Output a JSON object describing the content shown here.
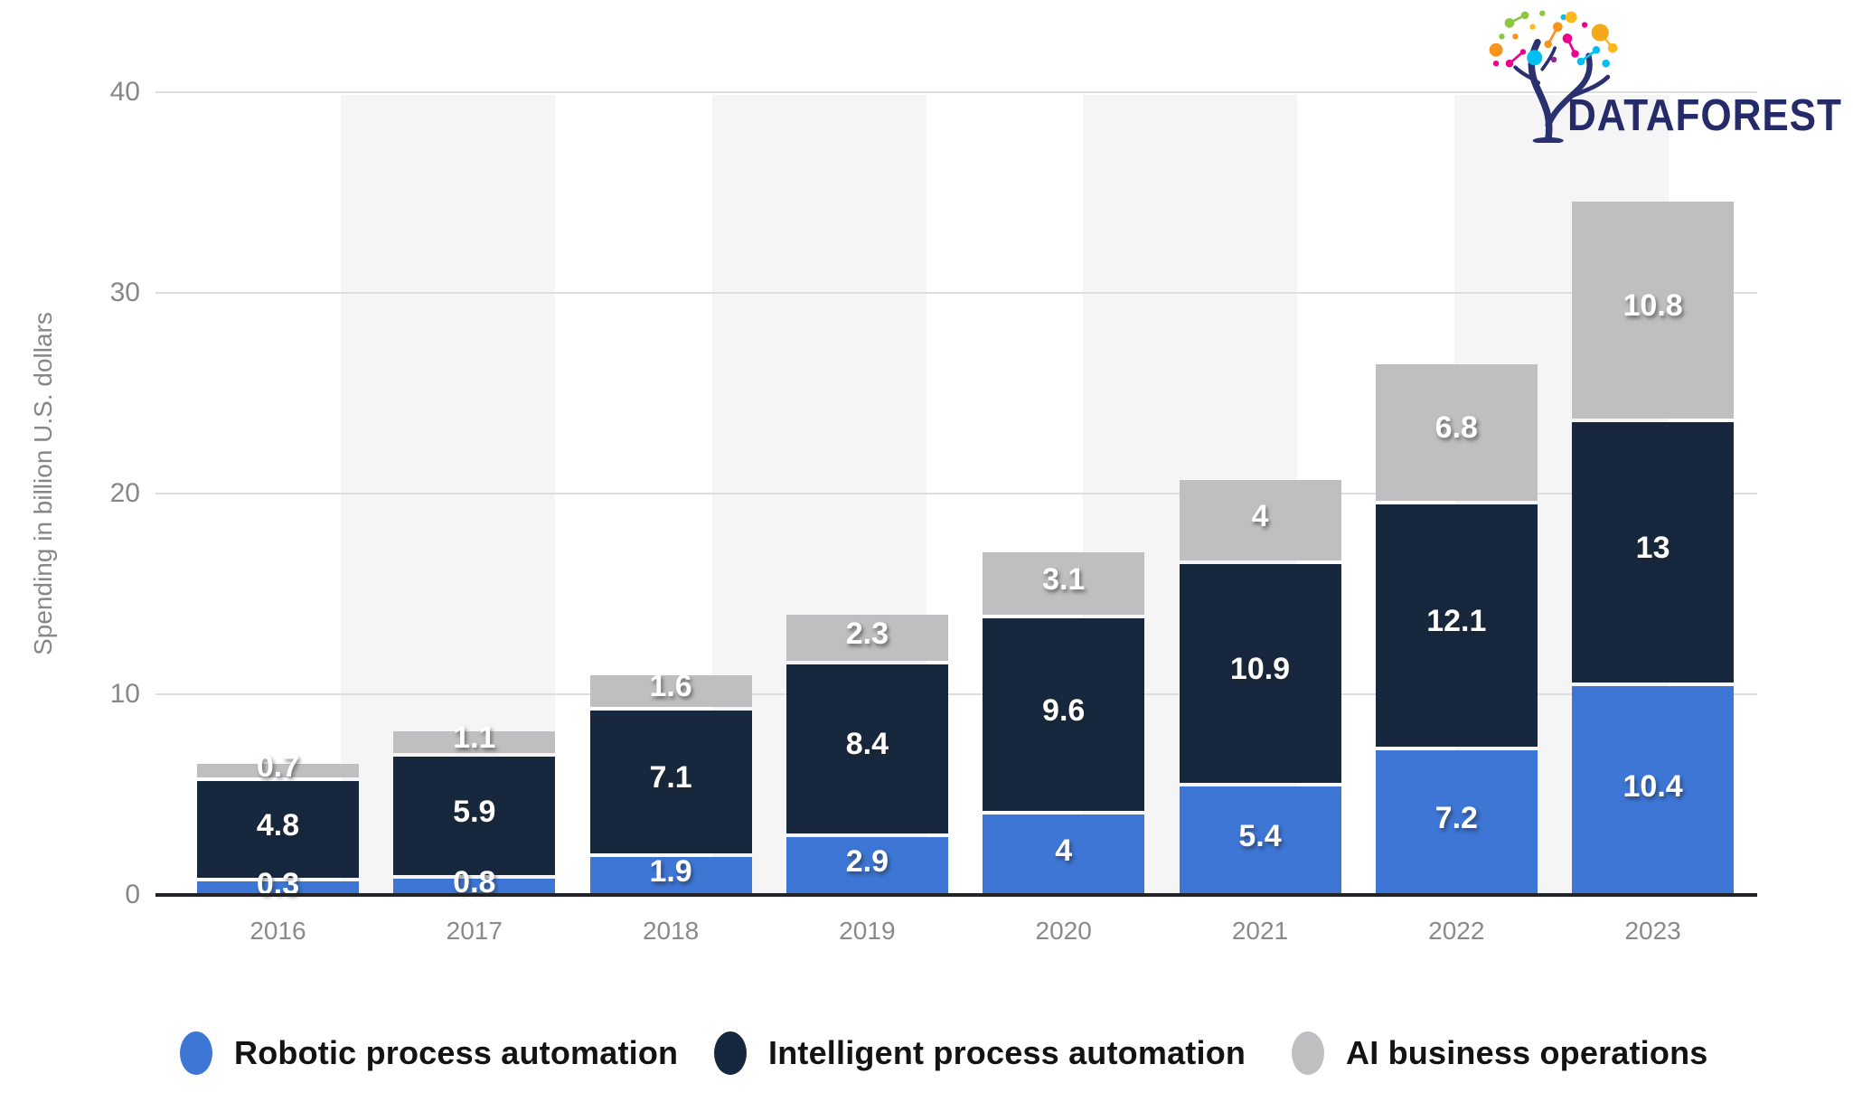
{
  "brand": {
    "logo_text": "DATAFOREST",
    "logo_icon": "data-tree-icon"
  },
  "y_axis": {
    "title": "Spending in billion U.S. dollars",
    "tick_labels": [
      "0",
      "10",
      "20",
      "30",
      "40"
    ],
    "max": 40
  },
  "x_axis": {
    "tick_labels": [
      "2016",
      "2017",
      "2018",
      "2019",
      "2020",
      "2021",
      "2022",
      "2023"
    ]
  },
  "colors": {
    "robotic": "#3d76d5",
    "intelligent": "#17283e",
    "ai_ops": "#bfbfc1",
    "stripe": "#f5f5f6",
    "gridline": "#dedede",
    "axis_line": "#222326",
    "logo_navy": "#242b68"
  },
  "chart_data": {
    "type": "bar",
    "stacked": true,
    "title": "",
    "xlabel": "",
    "ylabel": "Spending in billion U.S. dollars",
    "ylim": [
      0,
      40
    ],
    "grid": "horizontal",
    "legend_position": "bottom",
    "categories": [
      "2016",
      "2017",
      "2018",
      "2019",
      "2020",
      "2021",
      "2022",
      "2023"
    ],
    "series": [
      {
        "name": "Robotic process automation",
        "color": "#3d76d5",
        "values": [
          0.3,
          0.8,
          1.9,
          2.9,
          4,
          5.4,
          7.2,
          10.4
        ]
      },
      {
        "name": "Intelligent process automation",
        "color": "#17283e",
        "values": [
          4.8,
          5.9,
          7.1,
          8.4,
          9.6,
          10.9,
          12.1,
          13
        ]
      },
      {
        "name": "AI business operations",
        "color": "#bfbfc1",
        "values": [
          0.7,
          1.1,
          1.6,
          2.3,
          3.1,
          4,
          6.8,
          10.8
        ]
      }
    ]
  }
}
